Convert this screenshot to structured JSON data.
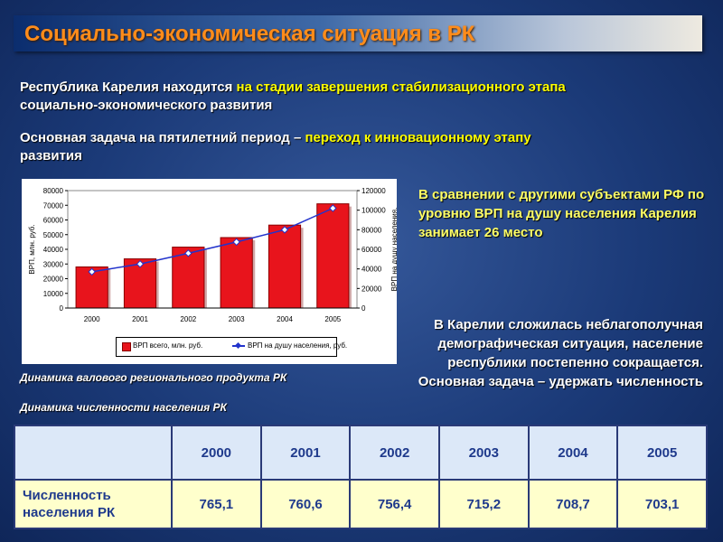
{
  "title": "Социально-экономическая ситуация в РК",
  "para1": {
    "part1": "Республика Карелия находится ",
    "highlight": "на стадии завершения стабилизационного этапа",
    "part2": "социально-экономического развития"
  },
  "para2": {
    "part1": "Основная задача на пятилетний период – ",
    "highlight": "переход к инновационному этапу",
    "part2": "развития"
  },
  "right_text1": "В сравнении с другими субъектами РФ по уровню ВРП на душу населения Карелия занимает 26 место",
  "right_text2": "В Карелии сложилась неблагополучная демографическая ситуация, население республики постепенно сокращается. Основная задача – удержать численность",
  "caption_chart": "Динамика валового регионального продукта РК",
  "caption_table": "Динамика численности населения РК",
  "colors": {
    "title": "#ff8c1a",
    "highlight": "#ffff00",
    "bar": "#e8141c",
    "line": "#2233cc",
    "right_text1": "#ffff66",
    "right_text2": "#ffffff"
  },
  "chart_data": {
    "type": "bar",
    "categories": [
      "2000",
      "2001",
      "2002",
      "2003",
      "2004",
      "2005"
    ],
    "series": [
      {
        "name": "ВРП всего, млн. руб.",
        "type": "bar",
        "axis": "left",
        "values": [
          28000,
          33500,
          41500,
          48000,
          56500,
          71000
        ]
      },
      {
        "name": "ВРП на душу населения, руб.",
        "type": "line",
        "axis": "right",
        "values": [
          37000,
          45000,
          56000,
          67500,
          80000,
          102000
        ]
      }
    ],
    "ylabel": "ВРП, млн. руб.",
    "ylabel_right": "ВРП на душу населения, руб.",
    "ylim": [
      0,
      80000
    ],
    "ylim_right": [
      0,
      120000
    ],
    "yticks": [
      "80000",
      "70000",
      "60000",
      "50000",
      "40000",
      "30000",
      "20000",
      "10000",
      "0"
    ],
    "yticks_right": [
      "120000",
      "100000",
      "80000",
      "60000",
      "40000",
      "20000",
      "0"
    ],
    "legend_position": "bottom",
    "grid": false
  },
  "table": {
    "years": [
      "2000",
      "2001",
      "2002",
      "2003",
      "2004",
      "2005"
    ],
    "row_label": "Численность населения РК",
    "values": [
      "765,1",
      "760,6",
      "756,4",
      "715,2",
      "708,7",
      "703,1"
    ]
  }
}
